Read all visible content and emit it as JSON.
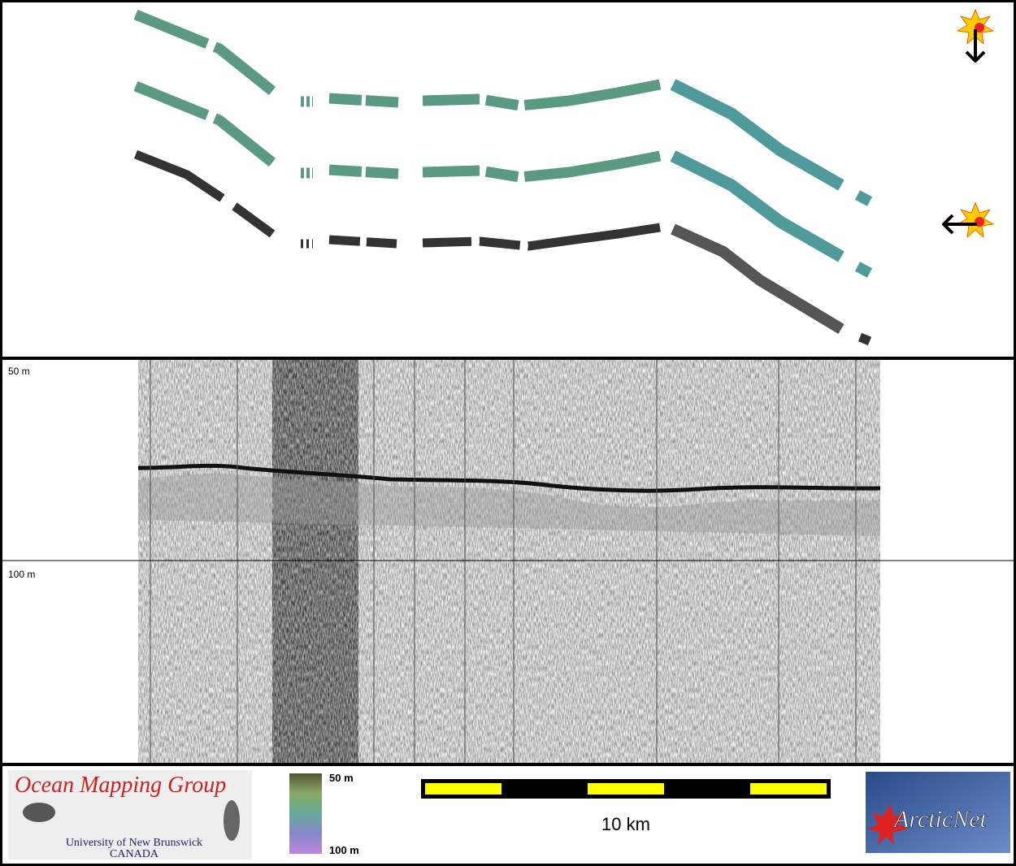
{
  "profile": {
    "depth_labels": [
      "50 m",
      "100 m"
    ]
  },
  "logos": {
    "omg": {
      "title": "Ocean Mapping Group",
      "university": "University of New Brunswick",
      "country": "CANADA"
    },
    "arcticnet": "ArcticNet"
  },
  "colorbar": {
    "top": "50 m",
    "bottom": "100 m"
  },
  "scale_bar": {
    "label": "10 km"
  }
}
